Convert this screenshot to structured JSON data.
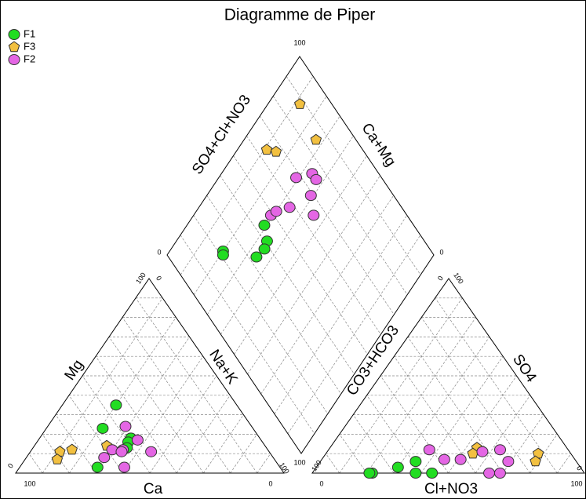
{
  "chart_data": {
    "type": "piper",
    "title": "Diagramme de Piper",
    "ticks": [
      0,
      100
    ],
    "cation_labels": [
      "Mg",
      "Na+K",
      "Ca"
    ],
    "anion_labels": [
      "CO3+HCO3",
      "SO4",
      "Cl+NO3"
    ],
    "diamond_labels": [
      "SO4+Cl+NO3",
      "Ca+Mg"
    ],
    "grid": true,
    "series": [
      {
        "name": "F1",
        "color": "#22dd22",
        "marker": "circle",
        "mg": [
          35,
          23,
          18,
          16,
          13,
          3
        ],
        "nak": [
          20,
          21,
          34,
          34,
          35,
          29
        ],
        "so4": [
          0,
          0,
          3,
          6,
          0,
          0
        ],
        "cl": [
          22,
          21,
          30,
          35,
          38,
          44
        ]
      },
      {
        "name": "F3",
        "color": "#f2c040",
        "marker": "pentagon",
        "mg": [
          12,
          11,
          7,
          14
        ],
        "nak": [
          15,
          11,
          12,
          27
        ],
        "so4": [
          13,
          10,
          10,
          6
        ],
        "cl": [
          54,
          54,
          78,
          79
        ]
      },
      {
        "name": "F2",
        "color": "#e466e4",
        "marker": "circle",
        "mg": [
          24,
          12,
          12,
          8,
          11,
          17,
          11,
          3
        ],
        "nak": [
          29,
          30,
          34,
          29,
          34,
          37,
          45,
          39
        ],
        "so4": [
          12,
          7,
          7,
          11,
          12,
          6,
          0,
          0
        ],
        "cl": [
          37,
          45,
          51,
          57,
          63,
          69,
          65,
          69
        ]
      }
    ]
  }
}
